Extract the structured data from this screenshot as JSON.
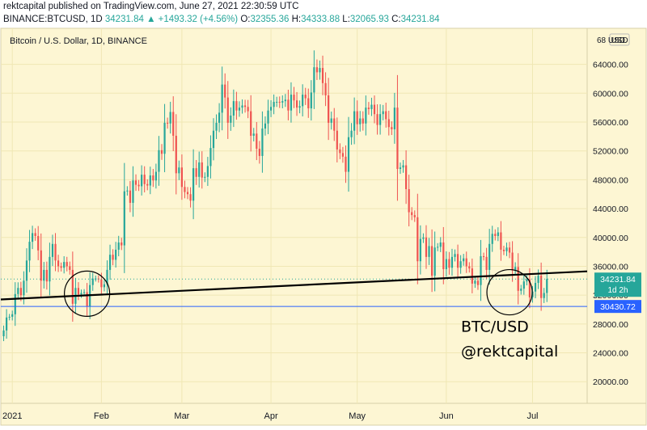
{
  "header": {
    "line1": "rektcapital published on TradingView.com, June 27, 2021 22:30:59 UTC",
    "symbol": "BINANCE:BTCUSD, 1D",
    "last": "34231.84",
    "change": "▲ +1493.32 (+4.56%)",
    "o_label": "O:",
    "o_value": "32355.36",
    "h_label": "H:",
    "h_value": "34333.88",
    "l_label": "L:",
    "l_value": "32065.93",
    "c_label": "C:",
    "c_value": "34231.84"
  },
  "chart_data": {
    "type": "candlestick",
    "title": "Bitcoin / U.S. Dollar, 1D, BINANCE",
    "currency": "USD",
    "y_axis_label": "68 USD",
    "ylim": [
      17000,
      69000
    ],
    "y_ticks": [
      20000,
      24000,
      28000,
      32000,
      36000,
      40000,
      44000,
      48000,
      52000,
      56000,
      60000,
      64000
    ],
    "y_tick_labels": [
      "20000.00",
      "24000.00",
      "28000.00",
      "32000.00",
      "36000.00",
      "40000.00",
      "44000.00",
      "48000.00",
      "52000.00",
      "56000.00",
      "60000.00",
      "64000.00"
    ],
    "x_start": "2020-12-28",
    "x_end": "2021-07-20",
    "x_ticks": [
      {
        "date": "2021-01-01",
        "label": "2021"
      },
      {
        "date": "2021-02-01",
        "label": "Feb"
      },
      {
        "date": "2021-03-01",
        "label": "Mar"
      },
      {
        "date": "2021-04-01",
        "label": "Apr"
      },
      {
        "date": "2021-05-01",
        "label": "May"
      },
      {
        "date": "2021-06-01",
        "label": "Jun"
      },
      {
        "date": "2021-07-01",
        "label": "Jul"
      }
    ],
    "approx_daily_closes": {
      "start_date": "2020-12-28",
      "close": [
        26300,
        27100,
        28900,
        29000,
        29350,
        32150,
        33000,
        32000,
        34000,
        36800,
        39400,
        40600,
        40200,
        38200,
        34000,
        35500,
        33900,
        37300,
        39100,
        36800,
        36000,
        35800,
        36600,
        36000,
        35500,
        30800,
        33000,
        32100,
        32300,
        32400,
        30400,
        33400,
        34300,
        34300,
        34200,
        33100,
        33500,
        35500,
        37600,
        36900,
        38300,
        39300,
        38900,
        46400,
        46500,
        44800,
        47900,
        47300,
        47100,
        48700,
        47400,
        47200,
        48600,
        47900,
        49100,
        52100,
        51600,
        55900,
        55800,
        57400,
        54100,
        48900,
        49700,
        47000,
        46300,
        46000,
        45100,
        49600,
        48400,
        50400,
        48300,
        48400,
        49900,
        52400,
        54800,
        55900,
        57300,
        61200,
        59400,
        55900,
        56900,
        58900,
        57600,
        58000,
        58300,
        58100,
        57500,
        54100,
        54400,
        52300,
        51300,
        55100,
        55800,
        57600,
        58100,
        58800,
        58800,
        58700,
        58900,
        59100,
        57600,
        59800,
        59000,
        58000,
        58200,
        59800,
        59300,
        57900,
        60100,
        63600,
        62900,
        63500,
        61400,
        59700,
        55900,
        56500,
        54800,
        52200,
        51700,
        51200,
        49100,
        53900,
        54800,
        57500,
        55700,
        56500,
        55800,
        58000,
        57800,
        58400,
        57100,
        55600,
        57100,
        57500,
        56400,
        55300,
        55000,
        58000,
        49500,
        49700,
        50000,
        46700,
        43500,
        43100,
        42800,
        36700,
        39800,
        40000,
        37300,
        38800,
        34700,
        38600,
        38700,
        39300,
        35600,
        37000,
        35800,
        37300,
        37700,
        35800,
        36700,
        37100,
        36000,
        35700,
        33600,
        34000,
        33400,
        37400,
        37300,
        35500,
        39100,
        40500,
        40200,
        40700,
        38300,
        38100,
        38600,
        37900,
        35400,
        35900,
        32600,
        32900,
        33900,
        34200,
        31700,
        32500,
        33700,
        34700,
        31600,
        32300,
        34231.84
      ]
    },
    "horizontal_line": {
      "price": 30430.72,
      "label": "30430.72",
      "color": "#2962ff"
    },
    "current_price": {
      "price": 34231.84,
      "label": "34231.84",
      "countdown": "1d 2h",
      "color": "#26a69a"
    },
    "trendline": {
      "start_date": "2020-12-28",
      "start_price": 31400,
      "end_date": "2021-07-20",
      "end_price": 35300,
      "color": "#000000"
    },
    "circles": [
      {
        "center_date": "2021-01-27",
        "center_price": 32200
      },
      {
        "center_date": "2021-06-23",
        "center_price": 32400
      }
    ],
    "annotation_lines": [
      "BTC/USD",
      "@rektcapital"
    ],
    "colors": {
      "up": "#26a69a",
      "down": "#ef5350",
      "background": "#fdf6d3",
      "grid": "#f0e7b4"
    }
  }
}
